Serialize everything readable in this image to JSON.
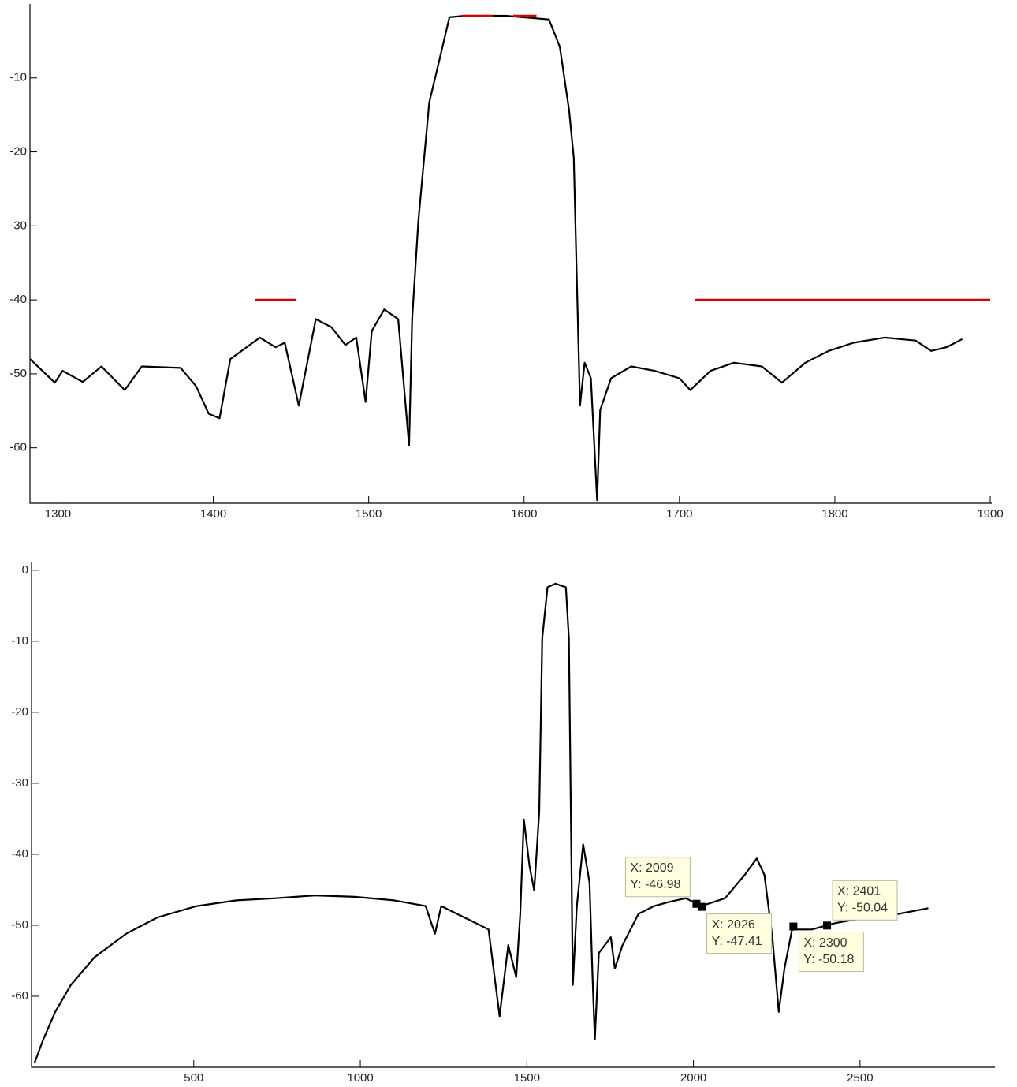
{
  "chart_data": [
    {
      "type": "line",
      "xlim": [
        1282,
        1901
      ],
      "ylim": [
        -67.5,
        0
      ],
      "xticks": [
        1300,
        1400,
        1500,
        1600,
        1700,
        1800,
        1900
      ],
      "yticks": [
        -60,
        -50,
        -40,
        -30,
        -20,
        -10
      ],
      "grid": false,
      "series": [
        {
          "color": "#000000",
          "x": [
            1282,
            1298,
            1303,
            1316,
            1328,
            1343,
            1354,
            1379,
            1389,
            1397,
            1404,
            1411,
            1430,
            1440,
            1446,
            1455,
            1466,
            1476,
            1485,
            1492,
            1498,
            1502,
            1510,
            1519,
            1526,
            1528,
            1532,
            1539,
            1545,
            1552,
            1562,
            1588,
            1616,
            1623,
            1629,
            1632,
            1634,
            1636,
            1639,
            1643,
            1647,
            1649,
            1656,
            1669,
            1684,
            1700,
            1707,
            1720,
            1735,
            1753,
            1766,
            1781,
            1796,
            1812,
            1832,
            1852,
            1862,
            1872,
            1882
          ],
          "values": [
            -48,
            -51.2,
            -49.6,
            -51.1,
            -49,
            -52.2,
            -49,
            -49.2,
            -51.7,
            -55.4,
            -56,
            -48,
            -45.1,
            -46.4,
            -45.8,
            -54.3,
            -42.6,
            -43.7,
            -46.1,
            -45.1,
            -53.8,
            -44.2,
            -41.3,
            -42.6,
            -59.7,
            -42.6,
            -29.3,
            -13.3,
            -8,
            -1.8,
            -1.6,
            -1.6,
            -2.1,
            -5.8,
            -14.4,
            -20.8,
            -37.8,
            -54.3,
            -48.5,
            -50.6,
            -67.1,
            -54.9,
            -50.6,
            -49,
            -49.6,
            -50.6,
            -52.2,
            -49.6,
            -48.5,
            -49,
            -51.2,
            -48.5,
            -46.9,
            -45.8,
            -45.1,
            -45.5,
            -46.9,
            -46.4,
            -45.3
          ]
        },
        {
          "color": "#d40000",
          "x": [
            1427,
            1453,
            null,
            1560,
            1580,
            null,
            1593,
            1608,
            null,
            1710,
            1900
          ],
          "values": [
            -40,
            -40,
            null,
            -1.6,
            -1.6,
            null,
            -1.6,
            -1.6,
            null,
            -40,
            -40
          ]
        }
      ]
    },
    {
      "type": "line",
      "xlim": [
        13,
        2905
      ],
      "ylim": [
        -70,
        1.2
      ],
      "xticks": [
        500,
        1000,
        1500,
        2000,
        2500
      ],
      "yticks": [
        -60,
        -50,
        -40,
        -30,
        -20,
        -10,
        0
      ],
      "grid": false,
      "series": [
        {
          "color": "#000000",
          "x": [
            22,
            48,
            84,
            131,
            202,
            297,
            391,
            509,
            628,
            746,
            864,
            983,
            1101,
            1196,
            1224,
            1243,
            1290,
            1338,
            1385,
            1418,
            1444,
            1468,
            1480,
            1491,
            1508,
            1522,
            1537,
            1546,
            1562,
            1586,
            1617,
            1626,
            1638,
            1650,
            1669,
            1688,
            1697,
            1704,
            1716,
            1752,
            1764,
            1787,
            1835,
            1882,
            1929,
            1977,
            2024,
            2095,
            2154,
            2190,
            2213,
            2237,
            2256,
            2273,
            2296,
            2355,
            2426,
            2521,
            2616,
            2705
          ],
          "values": [
            -69.4,
            -66.1,
            -62.2,
            -58.4,
            -54.5,
            -51.2,
            -48.9,
            -47.3,
            -46.5,
            -46.2,
            -45.8,
            -46,
            -46.5,
            -47.3,
            -51.2,
            -47.3,
            -48.4,
            -49.5,
            -50.6,
            -62.8,
            -52.8,
            -57.3,
            -48.4,
            -35.1,
            -41.7,
            -45.1,
            -34,
            -9.6,
            -2.4,
            -1.9,
            -2.4,
            -9.6,
            -58.4,
            -47.3,
            -38.6,
            -44,
            -57.3,
            -66.1,
            -53.9,
            -51.7,
            -56.1,
            -52.8,
            -48.4,
            -47.3,
            -46.7,
            -46.2,
            -47.3,
            -46.2,
            -42.9,
            -40.6,
            -42.9,
            -51.7,
            -62.2,
            -56.1,
            -50.6,
            -50.6,
            -49.7,
            -48.9,
            -48.4,
            -47.6
          ]
        }
      ],
      "annotations": [
        {
          "x": 2009,
          "y": -46.98,
          "text": [
            "X: 2009",
            "Y: -46.98"
          ]
        },
        {
          "x": 2026,
          "y": -47.41,
          "text": [
            "X: 2026",
            "Y: -47.41"
          ]
        },
        {
          "x": 2300,
          "y": -50.18,
          "text": [
            "X: 2300",
            "Y: -50.18"
          ]
        },
        {
          "x": 2401,
          "y": -50.04,
          "text": [
            "X: 2401",
            "Y: -50.04"
          ]
        }
      ]
    }
  ]
}
